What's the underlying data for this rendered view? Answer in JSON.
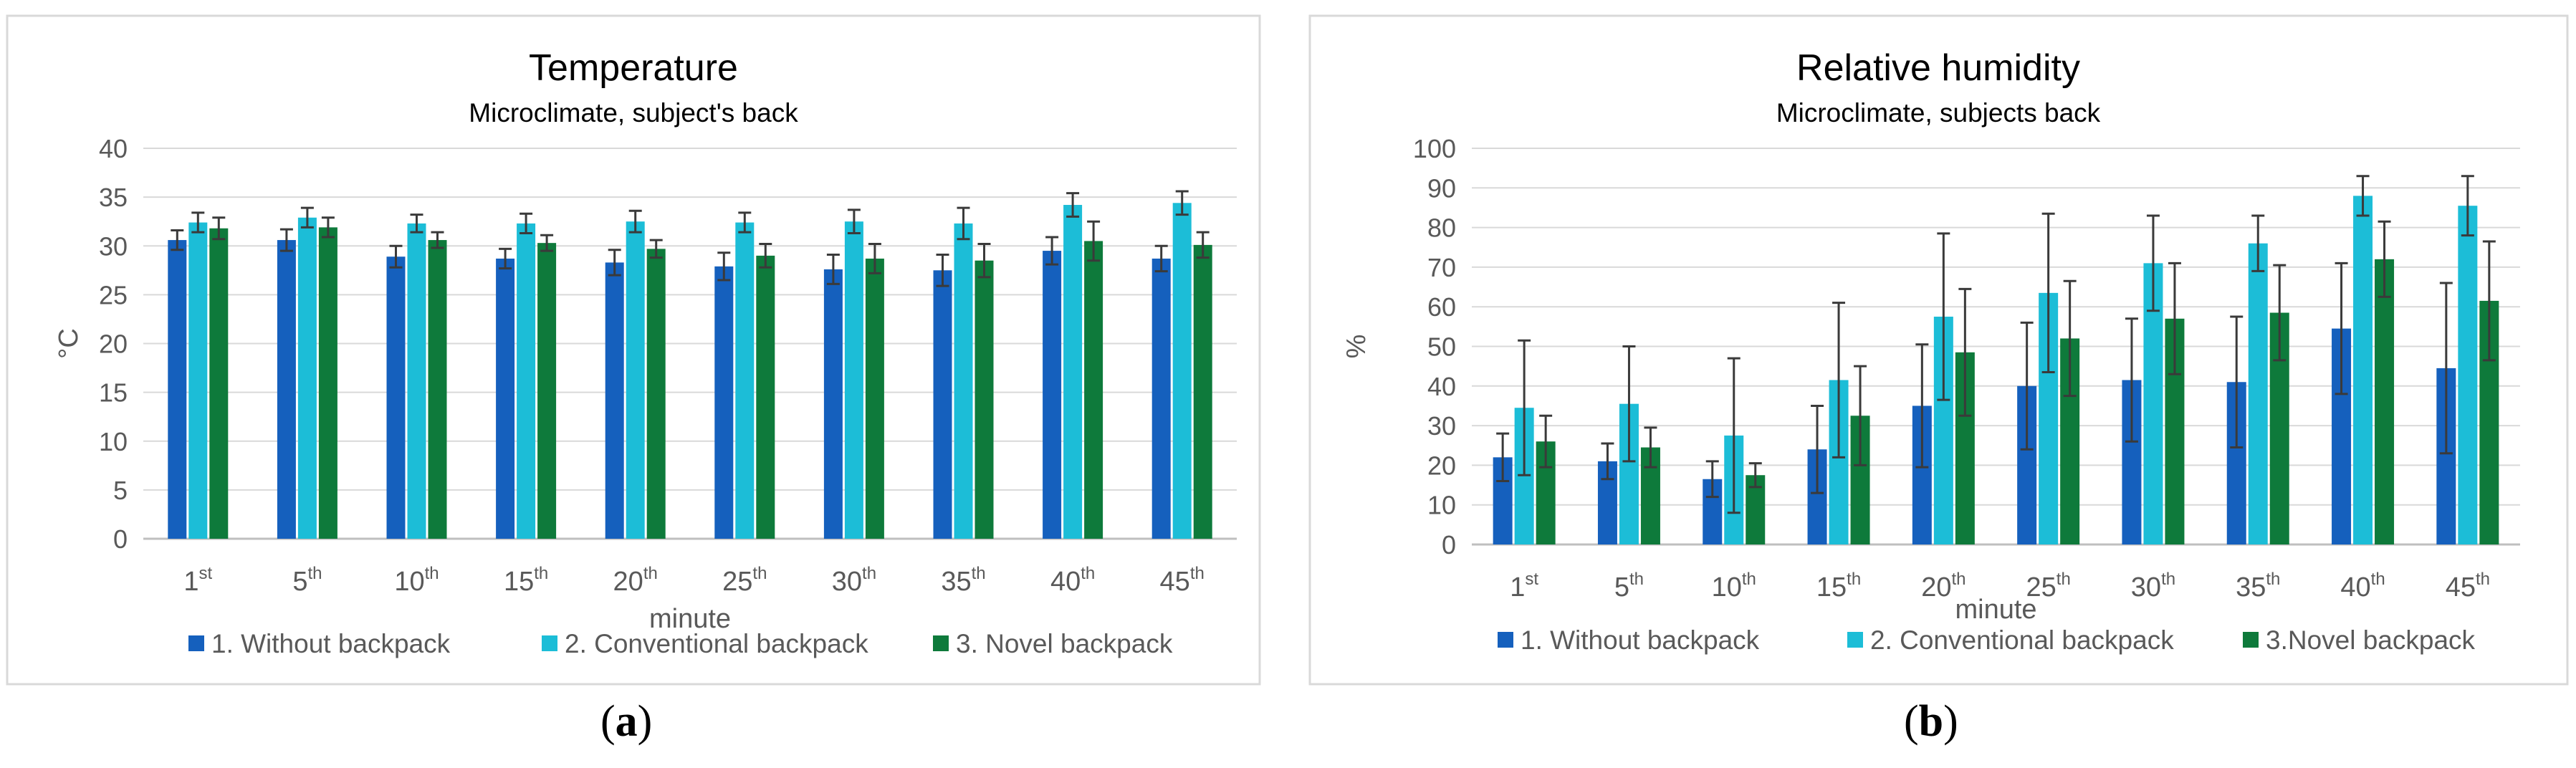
{
  "colors": {
    "series1": "#1560BD",
    "series2": "#1CBDD7",
    "series3": "#0E7A3B",
    "error": "#3a3a3a",
    "grid": "#d9d9d9",
    "axis": "#bfbfbf",
    "text": "#595959",
    "title": "#000000"
  },
  "panels": [
    {
      "label_open": "(",
      "label_letter": "a",
      "label_close": ")"
    },
    {
      "label_open": "(",
      "label_letter": "b",
      "label_close": ")"
    }
  ],
  "chart_data": [
    {
      "type": "bar",
      "title": "Temperature",
      "subtitle": "Microclimate, subject's back",
      "xlabel": "minute",
      "ylabel": "°C",
      "ylim": [
        0,
        40
      ],
      "yticks": [
        0,
        5,
        10,
        15,
        20,
        25,
        30,
        35,
        40
      ],
      "categories": [
        {
          "num": "1",
          "sup": "st"
        },
        {
          "num": "5",
          "sup": "th"
        },
        {
          "num": "10",
          "sup": "th"
        },
        {
          "num": "15",
          "sup": "th"
        },
        {
          "num": "20",
          "sup": "th"
        },
        {
          "num": "25",
          "sup": "th"
        },
        {
          "num": "30",
          "sup": "th"
        },
        {
          "num": "35",
          "sup": "th"
        },
        {
          "num": "40",
          "sup": "th"
        },
        {
          "num": "45",
          "sup": "th"
        }
      ],
      "series": [
        {
          "name": "1. Without backpack",
          "values": [
            30.6,
            30.6,
            28.9,
            28.7,
            28.3,
            27.9,
            27.6,
            27.5,
            29.5,
            28.7
          ],
          "errors": [
            1.0,
            1.1,
            1.1,
            1.0,
            1.3,
            1.4,
            1.5,
            1.6,
            1.4,
            1.3
          ]
        },
        {
          "name": "2. Conventional backpack",
          "values": [
            32.4,
            32.9,
            32.3,
            32.3,
            32.5,
            32.4,
            32.5,
            32.3,
            34.2,
            34.4
          ],
          "errors": [
            1.0,
            1.0,
            0.9,
            1.0,
            1.1,
            1.0,
            1.2,
            1.6,
            1.2,
            1.2
          ]
        },
        {
          "name": "3. Novel backpack",
          "values": [
            31.8,
            31.9,
            30.6,
            30.3,
            29.7,
            29.0,
            28.7,
            28.5,
            30.5,
            30.1
          ],
          "errors": [
            1.1,
            1.0,
            0.8,
            0.8,
            0.9,
            1.2,
            1.5,
            1.7,
            2.0,
            1.3
          ]
        }
      ]
    },
    {
      "type": "bar",
      "title": "Relative humidity",
      "subtitle": "Microclimate, subjects back",
      "xlabel": "minute",
      "ylabel": "%",
      "ylim": [
        0,
        100
      ],
      "yticks": [
        0,
        10,
        20,
        30,
        40,
        50,
        60,
        70,
        80,
        90,
        100
      ],
      "categories": [
        {
          "num": "1",
          "sup": "st"
        },
        {
          "num": "5",
          "sup": "th"
        },
        {
          "num": "10",
          "sup": "th"
        },
        {
          "num": "15",
          "sup": "th"
        },
        {
          "num": "20",
          "sup": "th"
        },
        {
          "num": "25",
          "sup": "th"
        },
        {
          "num": "30",
          "sup": "th"
        },
        {
          "num": "35",
          "sup": "th"
        },
        {
          "num": "40",
          "sup": "th"
        },
        {
          "num": "45",
          "sup": "th"
        }
      ],
      "series": [
        {
          "name": "1. Without backpack",
          "values": [
            22,
            21,
            16.5,
            24,
            35,
            40,
            41.5,
            41,
            54.5,
            44.5
          ],
          "errors": [
            6,
            4.5,
            4.5,
            11,
            15.5,
            16,
            15.5,
            16.5,
            16.5,
            21.5
          ]
        },
        {
          "name": "2. Conventional backpack",
          "values": [
            34.5,
            35.5,
            27.5,
            41.5,
            57.5,
            63.5,
            71,
            76,
            88,
            85.5
          ],
          "errors": [
            17,
            14.5,
            19.5,
            19.5,
            21,
            20,
            12,
            7,
            5,
            7.5
          ]
        },
        {
          "name": "3.Novel backpack",
          "values": [
            26,
            24.5,
            17.5,
            32.5,
            48.5,
            52,
            57,
            58.5,
            72,
            61.5
          ],
          "errors": [
            6.5,
            5,
            3,
            12.5,
            16,
            14.5,
            14,
            12,
            9.5,
            15
          ]
        }
      ]
    }
  ]
}
